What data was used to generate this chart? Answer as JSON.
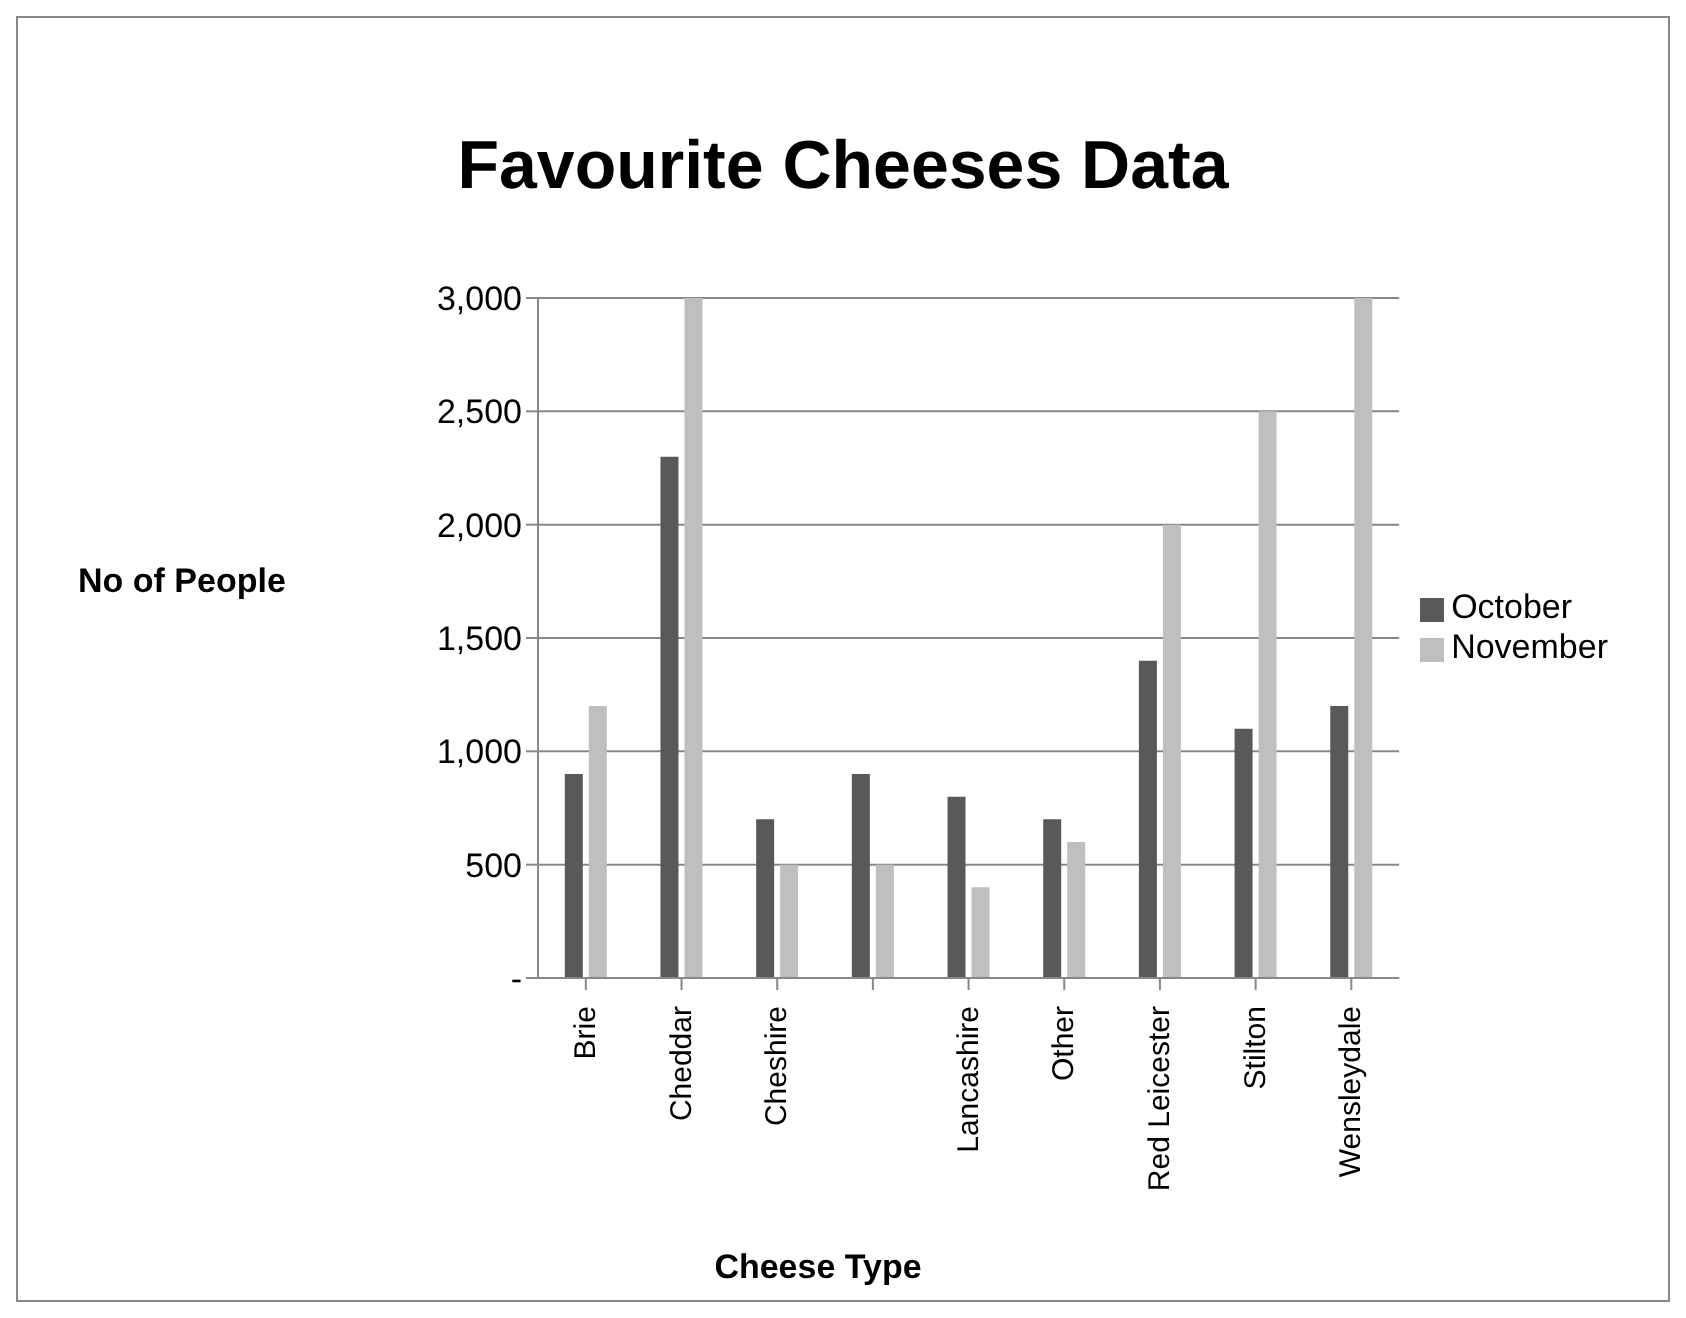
{
  "chart_data": {
    "type": "bar",
    "title": "Favourite Cheeses Data",
    "xlabel": "Cheese Type",
    "ylabel": "No of People",
    "categories": [
      "Brie",
      "Cheddar",
      "Cheshire",
      null,
      "Lancashire",
      "Other",
      "Red Leicester",
      "Stilton",
      "Wensleydale"
    ],
    "series": [
      {
        "name": "October",
        "color": "#595959",
        "values": [
          900,
          2300,
          700,
          900,
          800,
          700,
          1400,
          1100,
          1200
        ]
      },
      {
        "name": "November",
        "color": "#bfbfbf",
        "values": [
          1200,
          3000,
          500,
          500,
          400,
          600,
          2000,
          2500,
          3000
        ]
      }
    ],
    "ylim": [
      0,
      3000
    ],
    "yticks": [
      {
        "value": 0,
        "label": "-"
      },
      500,
      {
        "value": 1000,
        "label": "1,000"
      },
      {
        "value": 1500,
        "label": "1,500"
      },
      {
        "value": 2000,
        "label": "2,000"
      },
      {
        "value": 2500,
        "label": "2,500"
      },
      {
        "value": 3000,
        "label": "3,000"
      }
    ],
    "grid": "y",
    "legend": "right"
  }
}
